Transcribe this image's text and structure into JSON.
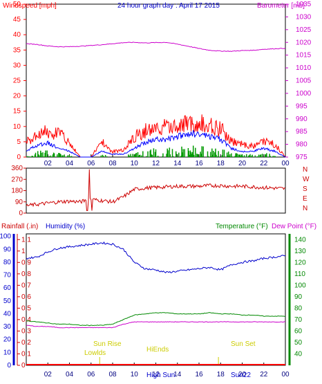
{
  "chart_data": [
    {
      "type": "line",
      "title": "24 hour graph day : April 17 2015",
      "left_axis_title": "Windspeed [mph]",
      "right_axis_title": "Barometer [mb]",
      "x_ticks": [
        "02",
        "04",
        "06",
        "08",
        "10",
        "12",
        "14",
        "16",
        "18",
        "20",
        "22",
        "00"
      ],
      "y_left_ticks": [
        "0",
        "5",
        "10",
        "15",
        "20",
        "25",
        "30",
        "35",
        "40",
        "45",
        "50"
      ],
      "y_left_range": [
        0,
        50
      ],
      "y_right_ticks": [
        "975",
        "980",
        "985",
        "990",
        "995",
        "1000",
        "1005",
        "1010",
        "1015",
        "1020",
        "1025",
        "1030",
        "1035"
      ],
      "y_right_range": [
        975,
        1035
      ],
      "colors": {
        "gust": "#ff0000",
        "average": "#0000ff",
        "barometer": "#cc00cc",
        "calm": "#009900"
      },
      "barometer_series": {
        "hours": [
          0,
          1,
          2,
          3,
          4,
          5,
          6,
          7,
          8,
          9,
          10,
          11,
          12,
          13,
          14,
          15,
          16,
          17,
          18,
          19,
          20,
          21,
          22,
          23,
          24
        ],
        "values": [
          1019.5,
          1019.2,
          1018.6,
          1018.3,
          1018.3,
          1018.5,
          1018.8,
          1019.1,
          1019.5,
          1019.9,
          1020.0,
          1019.8,
          1019.9,
          1020.0,
          1019.3,
          1018.5,
          1017.6,
          1016.9,
          1016.6,
          1016.5,
          1016.8,
          1016.9,
          1017.3,
          1017.5,
          1017.7
        ]
      },
      "gust_envelope": {
        "hours": [
          0,
          1,
          2,
          3,
          4,
          5,
          6,
          7,
          8,
          9,
          10,
          11,
          12,
          13,
          14,
          15,
          16,
          17,
          18,
          19,
          20,
          21,
          22,
          23,
          24
        ],
        "values": [
          6,
          8,
          10,
          9,
          6,
          0,
          0,
          6,
          2,
          3,
          8,
          10,
          11,
          12,
          12,
          13,
          13,
          12,
          11,
          6,
          5,
          4,
          6,
          5,
          0
        ]
      },
      "average_envelope": {
        "hours": [
          0,
          1,
          2,
          3,
          4,
          5,
          6,
          7,
          8,
          9,
          10,
          11,
          12,
          13,
          14,
          15,
          16,
          17,
          18,
          19,
          20,
          21,
          22,
          23,
          24
        ],
        "values": [
          2,
          4,
          5,
          3,
          2,
          0,
          0,
          2,
          1,
          1,
          3,
          5,
          6,
          6,
          7,
          8,
          8,
          7,
          6,
          3,
          2,
          2,
          3,
          2,
          0
        ]
      }
    },
    {
      "type": "scatter",
      "y_axis_ticks": [
        "0",
        "90",
        "180",
        "270",
        "360"
      ],
      "y_range": [
        0,
        360
      ],
      "compass_labels": [
        "N",
        "W",
        "S",
        "E",
        "N"
      ],
      "x_ticks": [
        "02",
        "04",
        "06",
        "08",
        "10",
        "12",
        "14",
        "16",
        "18",
        "20",
        "22",
        "00"
      ],
      "direction_series": {
        "hours": [
          0,
          1,
          2,
          3,
          4,
          5,
          6,
          7,
          8,
          9,
          10,
          11,
          12,
          13,
          14,
          15,
          16,
          17,
          18,
          19,
          20,
          21,
          22,
          23,
          24
        ],
        "values": [
          60,
          70,
          80,
          90,
          95,
          90,
          110,
          100,
          90,
          130,
          190,
          200,
          205,
          210,
          215,
          215,
          215,
          220,
          220,
          215,
          215,
          210,
          205,
          200,
          195
        ]
      }
    },
    {
      "type": "line",
      "labels": {
        "rain": "Rainfall (.in)",
        "humidity": "Humidity (%)",
        "temperature": "Temperature (°F)",
        "dewpoint": "Dew Point (°F)"
      },
      "x_ticks": [
        "02",
        "04",
        "06",
        "08",
        "10",
        "12",
        "14",
        "16",
        "18",
        "20",
        "22",
        "00"
      ],
      "y_rain_ticks": [
        "0",
        "0.1",
        "0.2",
        "0.3",
        "0.4",
        "0.5",
        "0.6",
        "0.7",
        "0.8",
        "0.9",
        "1",
        "1.1"
      ],
      "y_humidity_ticks": [
        "0",
        "10",
        "20",
        "30",
        "40",
        "50",
        "60",
        "70",
        "80",
        "90",
        "100"
      ],
      "y_temp_ticks": [
        "40",
        "50",
        "60",
        "70",
        "80",
        "90",
        "100",
        "110",
        "120",
        "130",
        "140"
      ],
      "y_temp_range": [
        30,
        145
      ],
      "y_humidity_range": [
        0,
        102
      ],
      "annotations": {
        "sun_rise": "Sun Rise",
        "low_uv": "Lowlds",
        "sun_set": "Sun Set",
        "high_uv": "HiEnds",
        "bottom_extra": "High Sun",
        "bottom_extra2": "Sun22"
      },
      "humidity_series": {
        "hours": [
          0,
          1,
          2,
          3,
          4,
          5,
          6,
          7,
          8,
          9,
          10,
          11,
          12,
          13,
          14,
          15,
          16,
          17,
          18,
          19,
          20,
          21,
          22,
          23,
          24
        ],
        "values": [
          83,
          84,
          88,
          91,
          92,
          93,
          94,
          95,
          94,
          90,
          80,
          75,
          74,
          72,
          73,
          74,
          75,
          76,
          74,
          78,
          80,
          81,
          83,
          84,
          85
        ]
      },
      "temperature_series": {
        "hours": [
          0,
          1,
          2,
          3,
          4,
          5,
          6,
          7,
          8,
          9,
          10,
          11,
          12,
          13,
          14,
          15,
          16,
          17,
          18,
          19,
          20,
          21,
          22,
          23,
          24
        ],
        "values": [
          69,
          68,
          67,
          66,
          66,
          65,
          65,
          65,
          66,
          70,
          74,
          75,
          76,
          76,
          75,
          75,
          75,
          76,
          75,
          75,
          74,
          74,
          73,
          73,
          73
        ]
      },
      "dewpoint_series": {
        "hours": [
          0,
          1,
          2,
          3,
          4,
          5,
          6,
          7,
          8,
          9,
          10,
          11,
          12,
          13,
          14,
          15,
          16,
          17,
          18,
          19,
          20,
          21,
          22,
          23,
          24
        ],
        "values": [
          65,
          64,
          64,
          63,
          63,
          63,
          63,
          63,
          63,
          66,
          68,
          68,
          68,
          68,
          68,
          68,
          68,
          68,
          68,
          68,
          68,
          68,
          68,
          68,
          68
        ]
      }
    }
  ]
}
